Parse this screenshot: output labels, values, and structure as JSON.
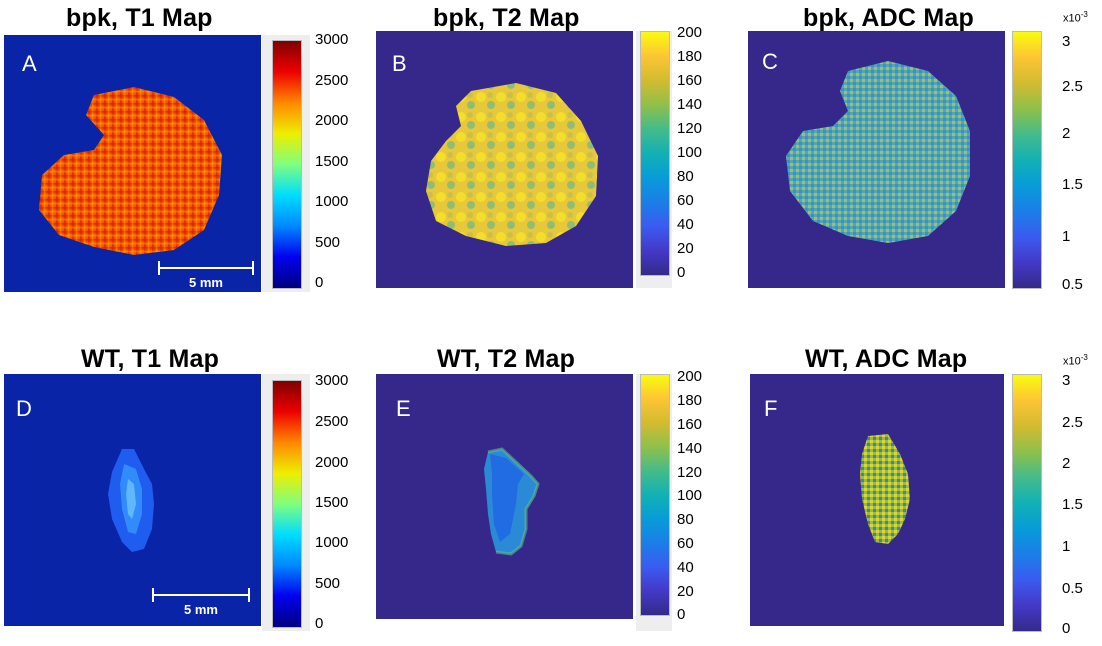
{
  "panels": [
    {
      "id": "A",
      "title": "bpk, T1 Map",
      "letter": "A",
      "scalebar": "5 mm",
      "ticks": [
        "3000",
        "2500",
        "2000",
        "1500",
        "1000",
        "500",
        "0"
      ],
      "exponent": "",
      "colormap": "jet",
      "background": "#0a24a8"
    },
    {
      "id": "B",
      "title": "bpk, T2 Map",
      "letter": "B",
      "scalebar": "",
      "ticks": [
        "200",
        "180",
        "160",
        "140",
        "120",
        "100",
        "80",
        "60",
        "40",
        "20",
        "0"
      ],
      "exponent": "",
      "colormap": "parula",
      "background": "#35288a"
    },
    {
      "id": "C",
      "title": "bpk, ADC Map",
      "letter": "C",
      "scalebar": "",
      "ticks": [
        "3",
        "2.5",
        "2",
        "1.5",
        "1",
        "0.5"
      ],
      "exponent": "x10-3",
      "colormap": "parula",
      "background": "#35288a"
    },
    {
      "id": "D",
      "title": "WT, T1 Map",
      "letter": "D",
      "scalebar": "5 mm",
      "ticks": [
        "3000",
        "2500",
        "2000",
        "1500",
        "1000",
        "500",
        "0"
      ],
      "exponent": "",
      "colormap": "jet",
      "background": "#0a24a8"
    },
    {
      "id": "E",
      "title": "WT, T2 Map",
      "letter": "E",
      "scalebar": "",
      "ticks": [
        "200",
        "180",
        "160",
        "140",
        "120",
        "100",
        "80",
        "60",
        "40",
        "20",
        "0"
      ],
      "exponent": "",
      "colormap": "parula",
      "background": "#35288a"
    },
    {
      "id": "F",
      "title": "WT, ADC Map",
      "letter": "F",
      "scalebar": "",
      "ticks": [
        "3",
        "2.5",
        "2",
        "1.5",
        "1",
        "0.5",
        "0"
      ],
      "exponent": "x10-3",
      "colormap": "parula",
      "background": "#35288a"
    }
  ],
  "colors": {
    "jet_gradient": [
      "#7f0000",
      "#ee0000",
      "#ff8800",
      "#eeee00",
      "#7fff7f",
      "#00ddff",
      "#0088ff",
      "#0000ee",
      "#00007f"
    ],
    "parula_gradient": [
      "#f9fb0e",
      "#fcc535",
      "#d2bb30",
      "#8fc04a",
      "#44bb8c",
      "#12b1b4",
      "#079cd8",
      "#1b7ee8",
      "#3b5bf0",
      "#4339c8",
      "#352a87"
    ]
  }
}
